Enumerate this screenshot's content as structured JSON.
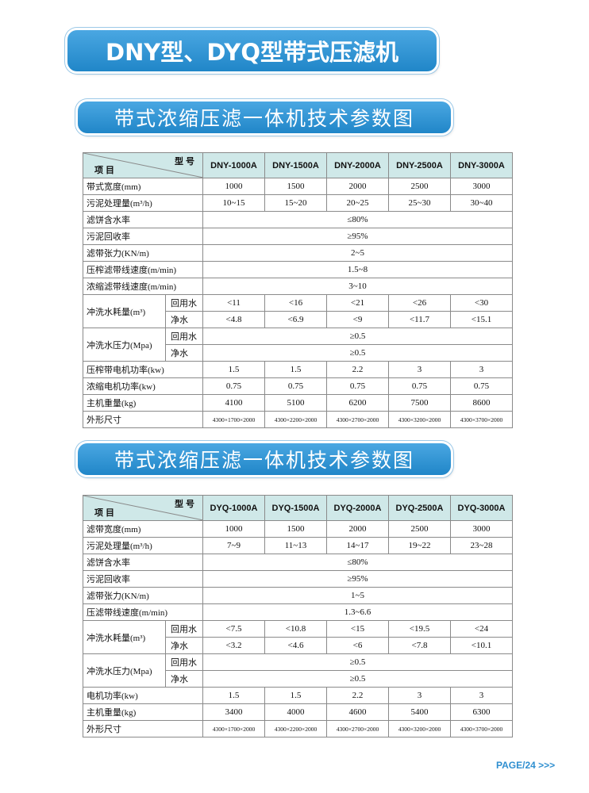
{
  "title": "DNY型、DYQ型带式压滤机",
  "sections": [
    {
      "heading": "带式浓缩压滤一体机技术参数图",
      "table": {
        "corner_top": "型 号",
        "corner_bottom": "项 目",
        "models": [
          "DNY-1000A",
          "DNY-1500A",
          "DNY-2000A",
          "DNY-2500A",
          "DNY-3000A"
        ],
        "rows": [
          {
            "label": "带式宽度(mm)",
            "cells": [
              "1000",
              "1500",
              "2000",
              "2500",
              "3000"
            ]
          },
          {
            "label": "污泥处理量(m³/h)",
            "cells": [
              "10~15",
              "15~20",
              "20~25",
              "25~30",
              "30~40"
            ]
          },
          {
            "label": "滤饼含水率",
            "cells": [
              "≤80%"
            ]
          },
          {
            "label": "污泥回收率",
            "cells": [
              "≥95%"
            ]
          },
          {
            "label": "滤带张力(KN/m)",
            "cells": [
              "2~5"
            ]
          },
          {
            "label": "压榨滤带线速度(m/min)",
            "cells": [
              "1.5~8"
            ]
          },
          {
            "label": "浓缩滤带线速度(m/min)",
            "cells": [
              "3~10"
            ]
          },
          {
            "label": "冲洗水耗量(m³)",
            "subrows": [
              {
                "label": "回用水",
                "cells": [
                  "<11",
                  "<16",
                  "<21",
                  "<26",
                  "<30"
                ]
              },
              {
                "label": "净水",
                "cells": [
                  "<4.8",
                  "<6.9",
                  "<9",
                  "<11.7",
                  "<15.1"
                ]
              }
            ]
          },
          {
            "label": "冲洗水压力(Mpa)",
            "subrows": [
              {
                "label": "回用水",
                "cells": [
                  "≥0.5"
                ]
              },
              {
                "label": "净水",
                "cells": [
                  "≥0.5"
                ]
              }
            ]
          },
          {
            "label": "压榨带电机功率(kw)",
            "cells": [
              "1.5",
              "1.5",
              "2.2",
              "3",
              "3"
            ]
          },
          {
            "label": "浓缩电机功率(kw)",
            "cells": [
              "0.75",
              "0.75",
              "0.75",
              "0.75",
              "0.75"
            ]
          },
          {
            "label": "主机重量(kg)",
            "cells": [
              "4100",
              "5100",
              "6200",
              "7500",
              "8600"
            ]
          },
          {
            "label": "外形尺寸",
            "cells": [
              "4300×1700×2000",
              "4300×2200×2000",
              "4300×2700×2000",
              "4300×3200×2000",
              "4300×3700×2000"
            ]
          }
        ]
      }
    },
    {
      "heading": "带式浓缩压滤一体机技术参数图",
      "table": {
        "corner_top": "型 号",
        "corner_bottom": "项 目",
        "models": [
          "DYQ-1000A",
          "DYQ-1500A",
          "DYQ-2000A",
          "DYQ-2500A",
          "DYQ-3000A"
        ],
        "rows": [
          {
            "label": "滤带宽度(mm)",
            "cells": [
              "1000",
              "1500",
              "2000",
              "2500",
              "3000"
            ]
          },
          {
            "label": "污泥处理量(m³/h)",
            "cells": [
              "7~9",
              "11~13",
              "14~17",
              "19~22",
              "23~28"
            ]
          },
          {
            "label": "滤饼含水率",
            "cells": [
              "≤80%"
            ]
          },
          {
            "label": "污泥回收率",
            "cells": [
              "≥95%"
            ]
          },
          {
            "label": "滤带张力(KN/m)",
            "cells": [
              "1~5"
            ]
          },
          {
            "label": "压滤带线速度(m/min)",
            "cells": [
              "1.3~6.6"
            ]
          },
          {
            "label": "冲洗水耗量(m³)",
            "subrows": [
              {
                "label": "回用水",
                "cells": [
                  "<7.5",
                  "<10.8",
                  "<15",
                  "<19.5",
                  "<24"
                ]
              },
              {
                "label": "净水",
                "cells": [
                  "<3.2",
                  "<4.6",
                  "<6",
                  "<7.8",
                  "<10.1"
                ]
              }
            ]
          },
          {
            "label": "冲洗水压力(Mpa)",
            "subrows": [
              {
                "label": "回用水",
                "cells": [
                  "≥0.5"
                ]
              },
              {
                "label": "净水",
                "cells": [
                  "≥0.5"
                ]
              }
            ]
          },
          {
            "label": "电机功率(kw)",
            "cells": [
              "1.5",
              "1.5",
              "2.2",
              "3",
              "3"
            ]
          },
          {
            "label": "主机重量(kg)",
            "cells": [
              "3400",
              "4000",
              "4600",
              "5400",
              "6300"
            ]
          },
          {
            "label": "外形尺寸",
            "cells": [
              "4300×1700×2000",
              "4300×2200×2000",
              "4300×2700×2000",
              "4300×3200×2000",
              "4300×3700×2000"
            ]
          }
        ]
      }
    }
  ],
  "footer": "PAGE/24 >>>"
}
